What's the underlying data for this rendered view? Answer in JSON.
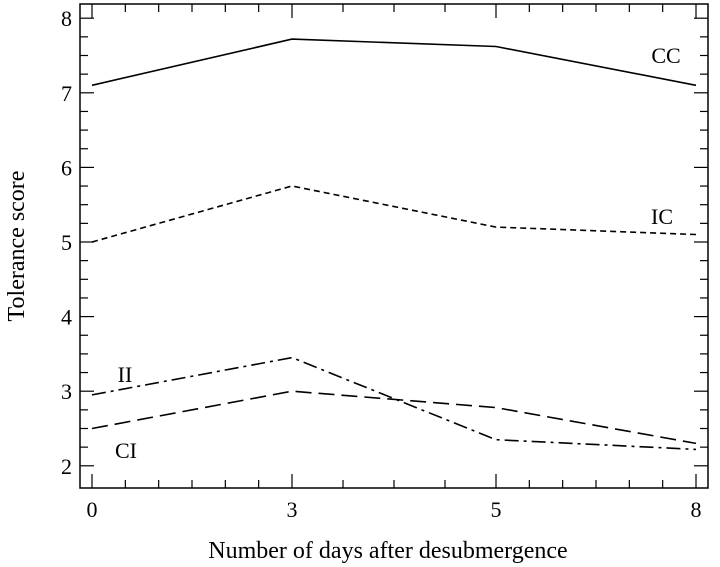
{
  "chart_data": {
    "type": "line",
    "title": "",
    "xlabel": "Number of days after desubmergence",
    "ylabel": "Tolerance score",
    "xlim": [
      0,
      8
    ],
    "ylim": [
      1.9,
      8.1
    ],
    "x_ticks": [
      {
        "value": 0,
        "label": "0"
      },
      {
        "value": 3,
        "label": "3"
      },
      {
        "value": 5,
        "label": "5"
      },
      {
        "value": 8,
        "label": "8"
      }
    ],
    "y_ticks": [
      2,
      3,
      4,
      5,
      6,
      7,
      8
    ],
    "grid": false,
    "legend": "inline labels",
    "series": [
      {
        "name": "CC",
        "style": "solid",
        "points": [
          [
            0,
            7.1
          ],
          [
            3,
            7.72
          ],
          [
            5,
            7.62
          ],
          [
            8,
            7.1
          ]
        ]
      },
      {
        "name": "IC",
        "style": "dashed",
        "points": [
          [
            0,
            5.0
          ],
          [
            3,
            5.75
          ],
          [
            5,
            5.2
          ],
          [
            8,
            5.1
          ]
        ]
      },
      {
        "name": "II",
        "style": "dashdot",
        "points": [
          [
            0,
            2.95
          ],
          [
            3,
            3.45
          ],
          [
            5,
            2.35
          ],
          [
            8,
            2.22
          ]
        ]
      },
      {
        "name": "CI",
        "style": "longdash",
        "points": [
          [
            0,
            2.5
          ],
          [
            3,
            3.0
          ],
          [
            5,
            2.78
          ],
          [
            8,
            2.3
          ]
        ]
      }
    ]
  },
  "colors": {
    "line": "#000000",
    "background": "#ffffff"
  }
}
